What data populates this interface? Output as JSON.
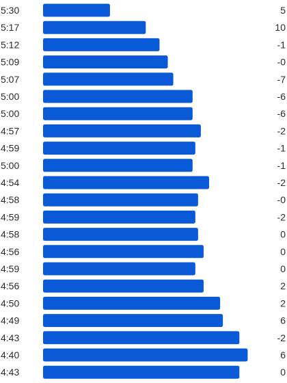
{
  "chart_data": {
    "type": "bar",
    "orientation": "horizontal",
    "color": "#0a5ad8",
    "pace_labels": [
      "5:30",
      "5:17",
      "5:12",
      "5:09",
      "5:07",
      "5:00",
      "5:00",
      "4:57",
      "4:59",
      "5:00",
      "4:54",
      "4:58",
      "4:59",
      "4:58",
      "4:56",
      "4:59",
      "4:56",
      "4:50",
      "4:49",
      "4:43",
      "4:40",
      "4:43"
    ],
    "values_seconds": [
      330,
      317,
      312,
      309,
      307,
      300,
      300,
      297,
      299,
      300,
      294,
      298,
      299,
      298,
      296,
      299,
      296,
      290,
      289,
      283,
      280,
      283
    ],
    "elevation_labels": [
      "5",
      "10",
      "-1",
      "-0",
      "-7",
      "-6",
      "-6",
      "-2",
      "-1",
      "-1",
      "-2",
      "-0",
      "-2",
      "0",
      "0",
      "0",
      "2",
      "2",
      "6",
      "-2",
      "6",
      "0"
    ],
    "x_axis_direction": "reversed"
  }
}
